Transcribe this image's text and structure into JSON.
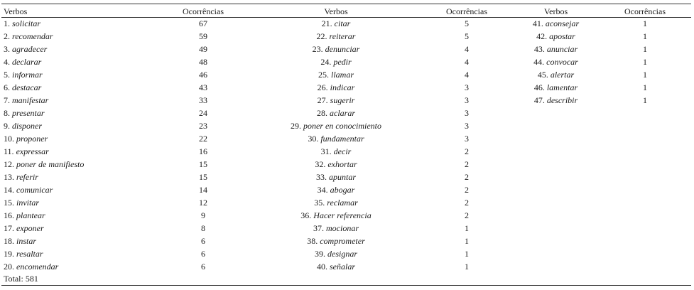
{
  "headers": {
    "verbos": "Verbos",
    "ocorrencias": "Ocorrências"
  },
  "column1": [
    {
      "num": "1.",
      "verb": "solicitar",
      "count": "67"
    },
    {
      "num": "2.",
      "verb": "recomendar",
      "count": "59"
    },
    {
      "num": "3.",
      "verb": "agradecer",
      "count": "49"
    },
    {
      "num": "4.",
      "verb": "declarar",
      "count": "48"
    },
    {
      "num": "5.",
      "verb": "informar",
      "count": "46"
    },
    {
      "num": "6.",
      "verb": "destacar",
      "count": "43"
    },
    {
      "num": "7.",
      "verb": "manifestar",
      "count": "33"
    },
    {
      "num": "8.",
      "verb": "presentar",
      "count": "24"
    },
    {
      "num": "9.",
      "verb": "disponer",
      "count": "23"
    },
    {
      "num": "10.",
      "verb": "proponer",
      "count": "22"
    },
    {
      "num": "11.",
      "verb": "expressar",
      "count": "16"
    },
    {
      "num": "12.",
      "verb": "poner de manifiesto",
      "count": "15"
    },
    {
      "num": "13.",
      "verb": "referir",
      "count": "15"
    },
    {
      "num": "14.",
      "verb": "comunicar",
      "count": "14"
    },
    {
      "num": "15.",
      "verb": "invitar",
      "count": "12"
    },
    {
      "num": "16.",
      "verb": "plantear",
      "count": "9"
    },
    {
      "num": "17.",
      "verb": "exponer",
      "count": "8"
    },
    {
      "num": "18.",
      "verb": "instar",
      "count": "6"
    },
    {
      "num": "19.",
      "verb": "resaltar",
      "count": "6"
    },
    {
      "num": "20.",
      "verb": "encomendar",
      "count": "6"
    }
  ],
  "column2": [
    {
      "num": "21.",
      "verb": "citar",
      "count": "5"
    },
    {
      "num": "22.",
      "verb": "reiterar",
      "count": "5"
    },
    {
      "num": "23.",
      "verb": "denunciar",
      "count": "4"
    },
    {
      "num": "24.",
      "verb": "pedir",
      "count": "4"
    },
    {
      "num": "25.",
      "verb": "llamar",
      "count": "4"
    },
    {
      "num": "26.",
      "verb": "indicar",
      "count": "3"
    },
    {
      "num": "27.",
      "verb": "sugerir",
      "count": "3"
    },
    {
      "num": "28.",
      "verb": "aclarar",
      "count": "3"
    },
    {
      "num": "29.",
      "verb": "poner en conocimiento",
      "count": "3"
    },
    {
      "num": "30.",
      "verb": "fundamentar",
      "count": "3"
    },
    {
      "num": "31.",
      "verb": "decir",
      "count": "2"
    },
    {
      "num": "32.",
      "verb": "exhortar",
      "count": "2"
    },
    {
      "num": "33.",
      "verb": "apuntar",
      "count": "2"
    },
    {
      "num": "34.",
      "verb": "abogar",
      "count": "2"
    },
    {
      "num": "35.",
      "verb": "reclamar",
      "count": "2"
    },
    {
      "num": "36.",
      "verb": "Hacer referencia",
      "count": "2"
    },
    {
      "num": "37.",
      "verb": "mocionar",
      "count": "1"
    },
    {
      "num": "38.",
      "verb": "comprometer",
      "count": "1"
    },
    {
      "num": "39.",
      "verb": "designar",
      "count": "1"
    },
    {
      "num": "40.",
      "verb": "señalar",
      "count": "1"
    }
  ],
  "column3": [
    {
      "num": "41.",
      "verb": "aconsejar",
      "count": "1"
    },
    {
      "num": "42.",
      "verb": "apostar",
      "count": "1"
    },
    {
      "num": "43.",
      "verb": "anunciar",
      "count": "1"
    },
    {
      "num": "44.",
      "verb": "convocar",
      "count": "1"
    },
    {
      "num": "45.",
      "verb": "alertar",
      "count": "1"
    },
    {
      "num": "46.",
      "verb": "lamentar",
      "count": "1"
    },
    {
      "num": "47.",
      "verb": "describir",
      "count": "1"
    }
  ],
  "total": "Total: 581"
}
